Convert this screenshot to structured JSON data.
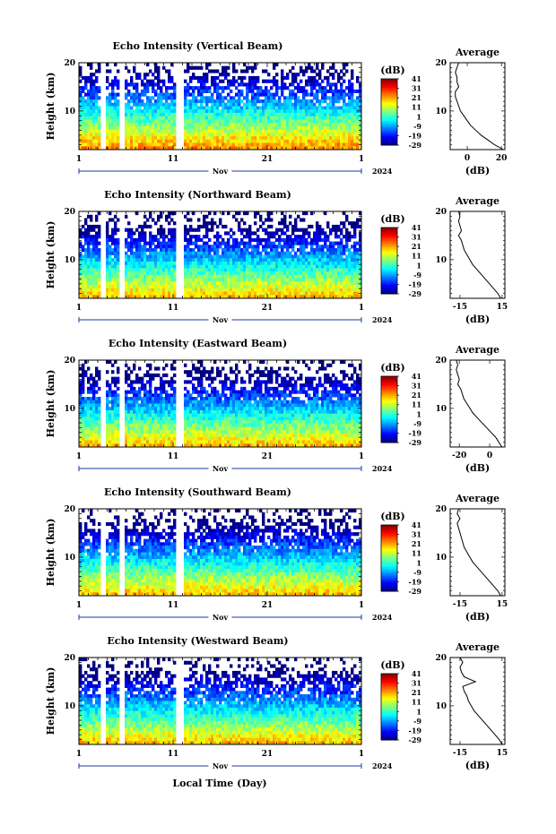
{
  "chart_data": [
    {
      "type": "heatmap",
      "title": "Echo Intensity (Vertical Beam)",
      "ylabel": "Height (km)",
      "x_ticks": [
        "1",
        "11",
        "21",
        "1"
      ],
      "x_month": "Nov",
      "x_year": "2024",
      "ylim": [
        2,
        20
      ],
      "y_ticks": [
        "20",
        "10"
      ],
      "colorbar": {
        "unit": "(dB)",
        "labels": [
          "41",
          "31",
          "21",
          "11",
          "1",
          "-9",
          "-19",
          "-29"
        ],
        "range": [
          -29,
          41
        ]
      },
      "average": {
        "title": "Average",
        "xlabel": "(dB)",
        "x_ticks": [
          "0",
          "20"
        ],
        "xlim": [
          -10,
          22
        ],
        "height": [
          2,
          3,
          4,
          5,
          6,
          7,
          8,
          9,
          10,
          11,
          12,
          13,
          14,
          15,
          16,
          17,
          18,
          19,
          20
        ],
        "value": [
          21,
          16,
          12,
          8,
          5,
          2,
          0,
          -2,
          -4,
          -5,
          -6,
          -7,
          -7,
          -5,
          -6,
          -6,
          -7,
          -6,
          -5
        ]
      }
    },
    {
      "type": "heatmap",
      "title": "Echo Intensity (Northward Beam)",
      "ylabel": "Height (km)",
      "x_ticks": [
        "1",
        "11",
        "21",
        "1"
      ],
      "x_month": "Nov",
      "x_year": "2024",
      "ylim": [
        2,
        20
      ],
      "y_ticks": [
        "20",
        "10"
      ],
      "colorbar": {
        "unit": "(dB)",
        "labels": [
          "41",
          "31",
          "21",
          "11",
          "1",
          "-9",
          "-19",
          "-29"
        ],
        "range": [
          -29,
          41
        ]
      },
      "average": {
        "title": "Average",
        "xlabel": "(dB)",
        "x_ticks": [
          "-15",
          "15"
        ],
        "xlim": [
          -22,
          17
        ],
        "height": [
          2,
          3,
          4,
          5,
          6,
          7,
          8,
          9,
          10,
          11,
          12,
          13,
          14,
          15,
          16,
          17,
          18,
          19,
          20
        ],
        "value": [
          14,
          12,
          9,
          6,
          3,
          0,
          -3,
          -6,
          -8,
          -10,
          -12,
          -13,
          -14,
          -16,
          -14,
          -15,
          -16,
          -15,
          -16
        ]
      }
    },
    {
      "type": "heatmap",
      "title": "Echo Intensity (Eastward Beam)",
      "ylabel": "Height (km)",
      "x_ticks": [
        "1",
        "11",
        "21",
        "1"
      ],
      "x_month": "Nov",
      "x_year": "2024",
      "ylim": [
        2,
        20
      ],
      "y_ticks": [
        "20",
        "10"
      ],
      "colorbar": {
        "unit": "(dB)",
        "labels": [
          "41",
          "31",
          "21",
          "11",
          "1",
          "-9",
          "-19",
          "-29"
        ],
        "range": [
          -29,
          41
        ]
      },
      "average": {
        "title": "Average",
        "xlabel": "(dB)",
        "x_ticks": [
          "-20",
          "0"
        ],
        "xlim": [
          -26,
          10
        ],
        "height": [
          2,
          3,
          4,
          5,
          6,
          7,
          8,
          9,
          10,
          11,
          12,
          13,
          14,
          15,
          16,
          17,
          18,
          19,
          20
        ],
        "value": [
          8,
          6,
          4,
          1,
          -2,
          -5,
          -8,
          -11,
          -13,
          -15,
          -17,
          -18,
          -19,
          -21,
          -20,
          -21,
          -22,
          -21,
          -22
        ]
      }
    },
    {
      "type": "heatmap",
      "title": "Echo Intensity (Southward Beam)",
      "ylabel": "Height (km)",
      "x_ticks": [
        "1",
        "11",
        "21",
        "1"
      ],
      "x_month": "Nov",
      "x_year": "2024",
      "ylim": [
        2,
        20
      ],
      "y_ticks": [
        "20",
        "10"
      ],
      "colorbar": {
        "unit": "(dB)",
        "labels": [
          "41",
          "31",
          "21",
          "11",
          "1",
          "-9",
          "-19",
          "-29"
        ],
        "range": [
          -29,
          41
        ]
      },
      "average": {
        "title": "Average",
        "xlabel": "(dB)",
        "x_ticks": [
          "-15",
          "15"
        ],
        "xlim": [
          -22,
          17
        ],
        "height": [
          2,
          3,
          4,
          5,
          6,
          7,
          8,
          9,
          10,
          11,
          12,
          13,
          14,
          15,
          16,
          17,
          18,
          19,
          20
        ],
        "value": [
          14,
          12,
          9,
          6,
          3,
          0,
          -3,
          -6,
          -8,
          -10,
          -12,
          -13,
          -14,
          -15,
          -16,
          -17,
          -15,
          -17,
          -16
        ]
      }
    },
    {
      "type": "heatmap",
      "title": "Echo Intensity (Westward Beam)",
      "ylabel": "Height (km)",
      "x_ticks": [
        "1",
        "11",
        "21",
        "1"
      ],
      "x_month": "Nov",
      "x_year": "2024",
      "ylim": [
        2,
        20
      ],
      "y_ticks": [
        "20",
        "10"
      ],
      "colorbar": {
        "unit": "(dB)",
        "labels": [
          "41",
          "31",
          "21",
          "11",
          "1",
          "-9",
          "-19",
          "-29"
        ],
        "range": [
          -29,
          41
        ]
      },
      "average": {
        "title": "Average",
        "xlabel": "(dB)",
        "x_ticks": [
          "-15",
          "15"
        ],
        "xlim": [
          -22,
          17
        ],
        "height": [
          2,
          3,
          4,
          5,
          6,
          7,
          8,
          9,
          10,
          11,
          12,
          13,
          14,
          15,
          16,
          17,
          18,
          19,
          20
        ],
        "value": [
          15,
          13,
          10,
          7,
          4,
          1,
          -2,
          -5,
          -7,
          -9,
          -10,
          -12,
          -13,
          -4,
          -12,
          -14,
          -15,
          -13,
          -15
        ]
      }
    }
  ],
  "common_xlabel": "Local Time (Day)"
}
